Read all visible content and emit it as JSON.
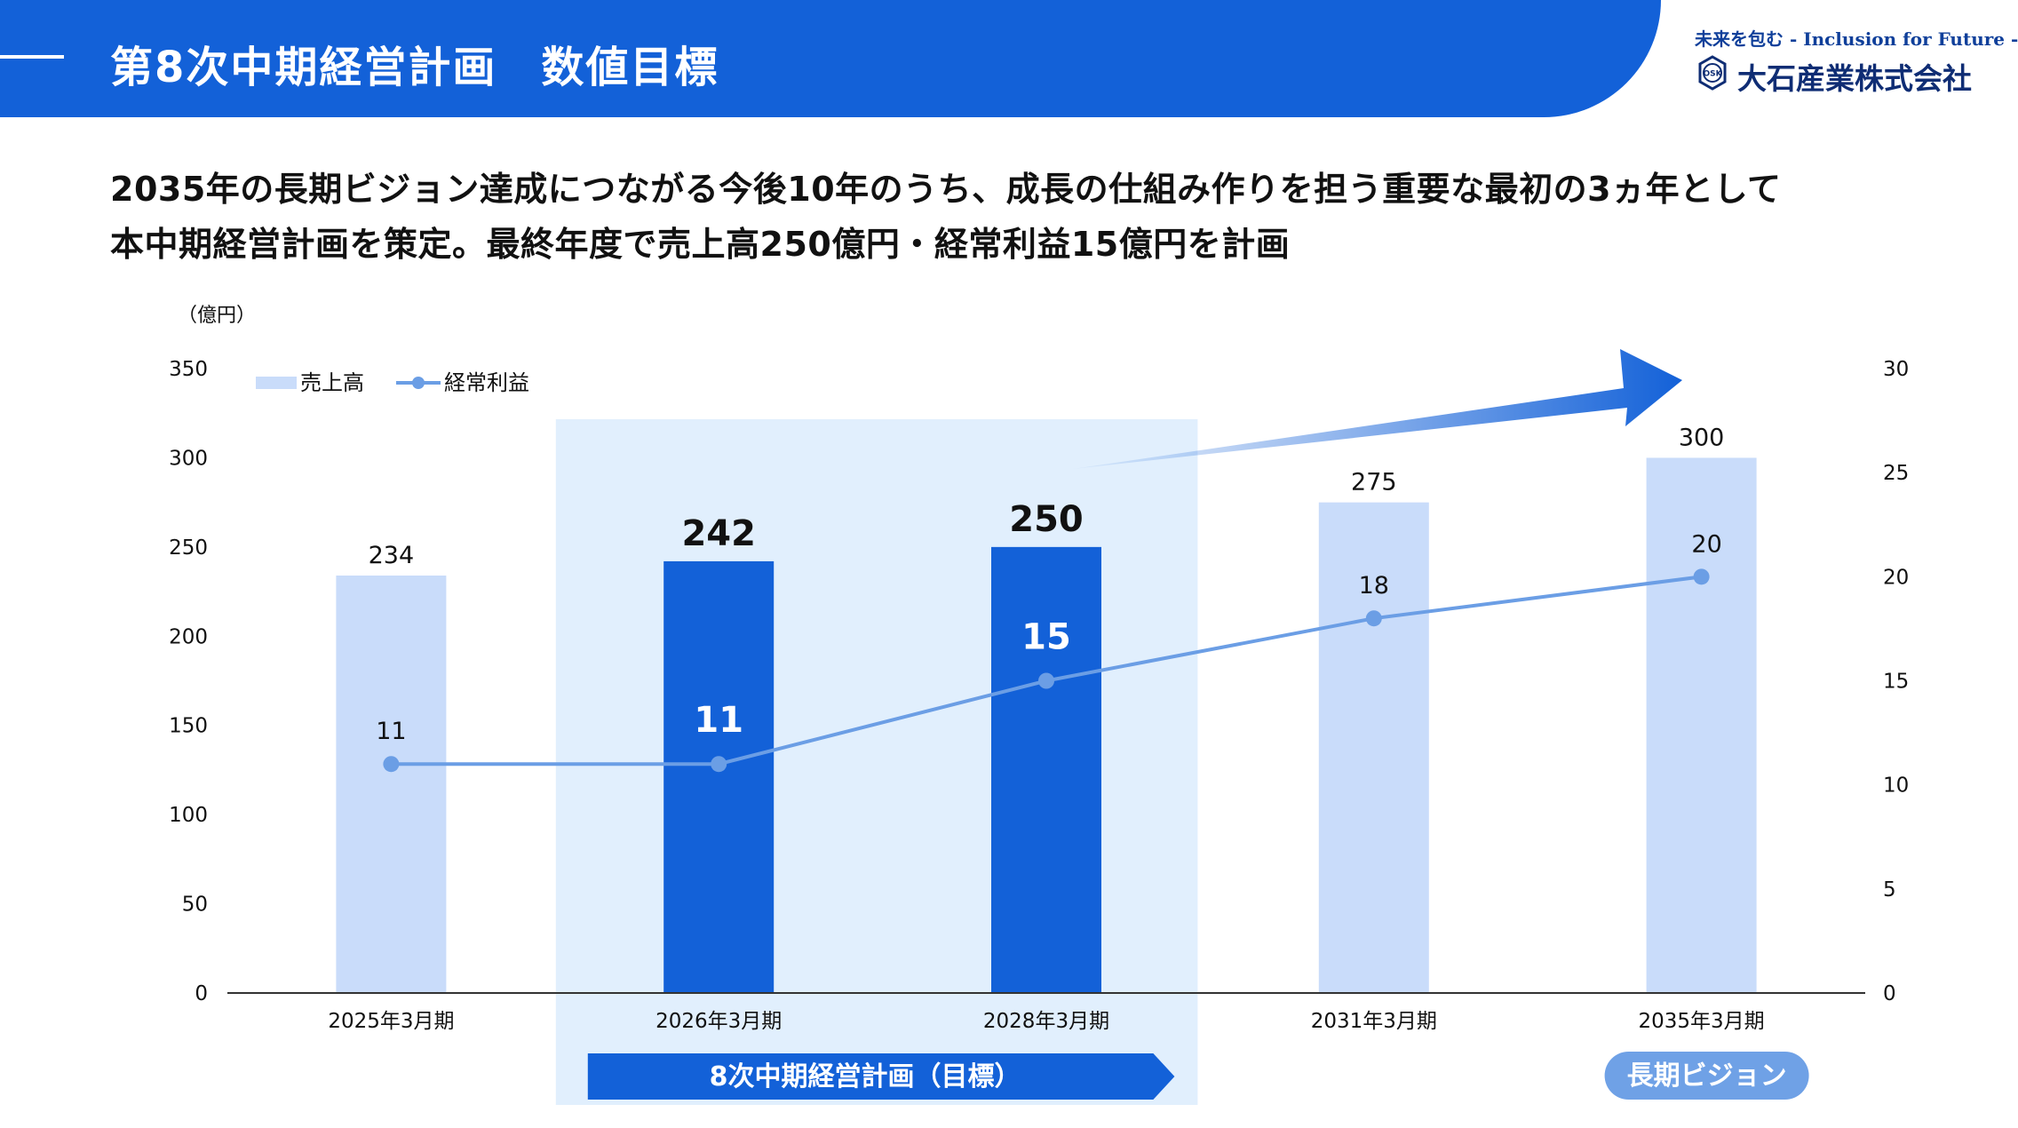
{
  "header": {
    "title": "第8次中期経営計画　数値目標"
  },
  "brand": {
    "tagline": "未来を包む - Inclusion for Future -",
    "logo_mark": "OSK",
    "company": "大石産業株式会社"
  },
  "lead": {
    "line1": "2035年の長期ビジョン達成につながる今後10年のうち、成長の仕組み作りを担う重要な最初の3ヵ年として",
    "line2": "本中期経営計画を策定。最終年度で売上高250億円・経常利益15億円を計画"
  },
  "colors": {
    "header": "#1361d8",
    "bar_light": "#c9dcfa",
    "bar_dark": "#1361d8",
    "line": "#6b9ee5",
    "highlight_bg": "#e1effd",
    "vision_badge": "#6fa1e6"
  },
  "chart_data": {
    "type": "bar",
    "unit_label": "（億円）",
    "categories": [
      "2025年3月期",
      "2026年3月期",
      "2028年3月期",
      "2031年3月期",
      "2035年3月期"
    ],
    "highlighted_categories": [
      1,
      2
    ],
    "series": [
      {
        "name": "売上高",
        "type": "bar",
        "axis": "left",
        "values": [
          234,
          242,
          250,
          275,
          300
        ]
      },
      {
        "name": "経常利益",
        "type": "line",
        "axis": "right",
        "values": [
          11,
          11,
          15,
          18,
          20
        ]
      }
    ],
    "ylim_left": [
      0,
      350
    ],
    "yticks_left": [
      "0",
      "50",
      "100",
      "150",
      "200",
      "250",
      "300",
      "350"
    ],
    "ylim_right": [
      0,
      30
    ],
    "yticks_right": [
      "0",
      "5",
      "10",
      "15",
      "20",
      "25",
      "30"
    ],
    "legend_position": "top-left",
    "grid": false,
    "annotations": {
      "plan_banner": "8次中期経営計画（目標）",
      "vision_badge": "長期ビジョン"
    }
  }
}
